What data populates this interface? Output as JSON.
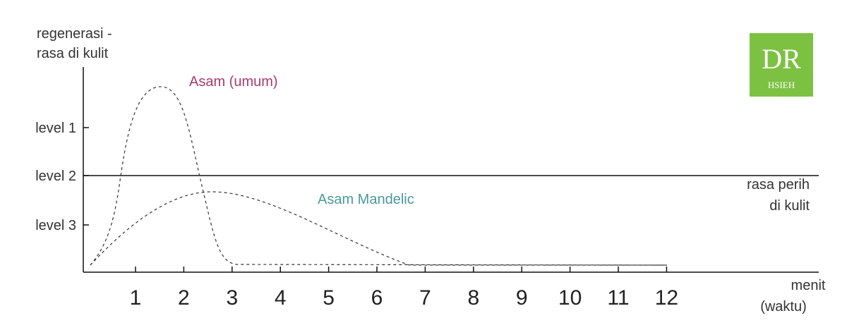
{
  "y_axis_label": [
    "regenerasi -",
    "rasa di kulit"
  ],
  "levels": [
    "level 1",
    "level 2",
    "level 3"
  ],
  "threshold_label": [
    "rasa perih",
    "di kulit"
  ],
  "x_axis_label": [
    "menit",
    "(waktu)"
  ],
  "x_ticks": [
    1,
    2,
    3,
    4,
    5,
    6,
    7,
    8,
    9,
    10,
    11,
    12
  ],
  "curves": [
    {
      "name": "Asam (umum)",
      "color": "#a83a6b"
    },
    {
      "name": "Asam Mandelic",
      "color": "#4a9a9a"
    }
  ],
  "logo": {
    "mark": "DR",
    "text": "HSIEH",
    "color": "#7dc142"
  }
}
